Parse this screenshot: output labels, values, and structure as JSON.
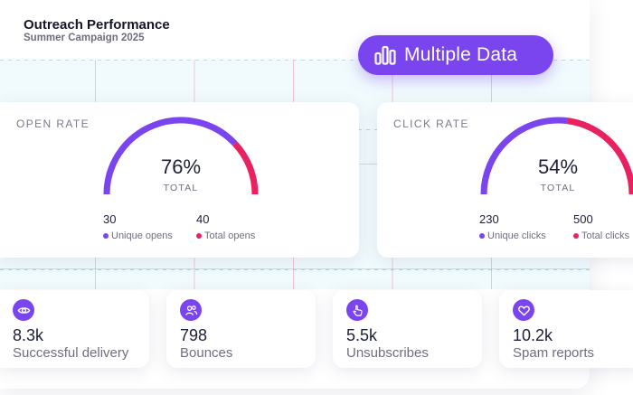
{
  "header": {
    "title": "Outreach Performance",
    "subtitle": "Summer Campaign 2025"
  },
  "pill": {
    "icon": "bar-chart-icon",
    "label": "Multiple Data"
  },
  "colors": {
    "accent": "#7a45ee",
    "secondary": "#e8225f",
    "track": "#ecebf5"
  },
  "open_rate": {
    "title": "OPEN RATE",
    "percent_value": 76,
    "percent_label": "76%",
    "total_label": "TOTAL",
    "stats": [
      {
        "value": "30",
        "label": "Unique opens",
        "color": "#7a45ee"
      },
      {
        "value": "40",
        "label": "Total opens",
        "color": "#e8225f"
      }
    ]
  },
  "click_rate": {
    "title": "CLICK RATE",
    "percent_value": 54,
    "percent_label": "54%",
    "total_label": "TOTAL",
    "stats": [
      {
        "value": "230",
        "label": "Unique clicks",
        "color": "#7a45ee"
      },
      {
        "value": "500",
        "label": "Total clicks",
        "color": "#e8225f"
      }
    ]
  },
  "metrics": [
    {
      "icon": "eye-icon",
      "value": "8.3k",
      "label": "Successful delivery"
    },
    {
      "icon": "users-icon",
      "value": "798",
      "label": "Bounces"
    },
    {
      "icon": "hand-pointer-icon",
      "value": "5.5k",
      "label": "Unsubscribes"
    },
    {
      "icon": "heart-icon",
      "value": "10.2k",
      "label": "Spam reports"
    }
  ]
}
